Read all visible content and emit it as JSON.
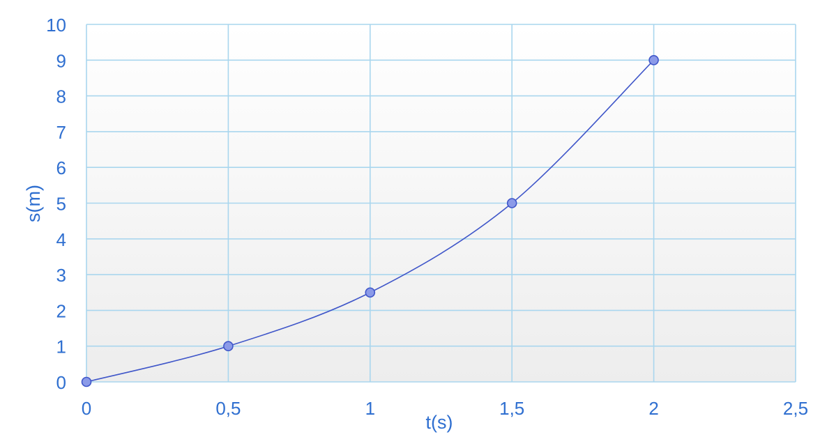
{
  "chart_data": {
    "type": "line",
    "title": "",
    "xlabel": "t(s)",
    "ylabel": "s(m)",
    "xlim": [
      0,
      2.5
    ],
    "ylim": [
      0,
      10
    ],
    "x_ticks": [
      "0",
      "0,5",
      "1",
      "1,5",
      "2",
      "2,5"
    ],
    "y_ticks": [
      "0",
      "1",
      "2",
      "3",
      "4",
      "5",
      "6",
      "7",
      "8",
      "9",
      "10"
    ],
    "grid": true,
    "line_style": "smooth",
    "series": [
      {
        "x": [
          0,
          0.5,
          1,
          1.5,
          2
        ],
        "y": [
          0,
          1,
          2.5,
          5,
          9
        ]
      }
    ],
    "colors": {
      "text": "#2f6fd0",
      "grid": "#a9d6ee",
      "line": "#3f56c9",
      "marker_fill": "#8b9ae8",
      "marker_stroke": "#3f56c9",
      "background_top": "#ffffff",
      "background_bottom": "#ededed"
    }
  }
}
